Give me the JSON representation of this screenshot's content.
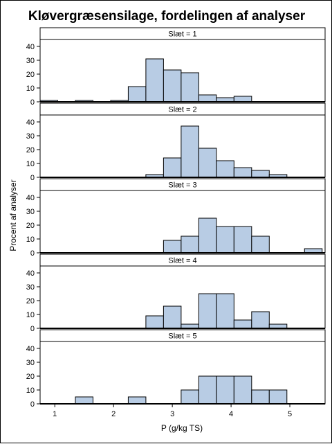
{
  "chart_data": {
    "type": "bar",
    "title": "Kløvergræsensilage, fordelingen af analyser",
    "xlabel": "P (g/kg TS)",
    "ylabel": "Procent af analyser",
    "xlim": [
      0.75,
      5.6
    ],
    "ylim": [
      0,
      45
    ],
    "xticks": [
      1,
      2,
      3,
      4,
      5
    ],
    "yticks": [
      0,
      10,
      20,
      30,
      40
    ],
    "bin_width": 0.3,
    "colors": {
      "bar_fill": "#b8cce4",
      "bar_stroke": "#000000",
      "strip_bg": "#ffffff"
    },
    "panels": [
      {
        "label": "Slæt = 1",
        "bins": [
          {
            "x0": 0.75,
            "value": 1
          },
          {
            "x0": 1.35,
            "value": 1
          },
          {
            "x0": 1.95,
            "value": 1
          },
          {
            "x0": 2.25,
            "value": 11
          },
          {
            "x0": 2.55,
            "value": 31
          },
          {
            "x0": 2.85,
            "value": 23
          },
          {
            "x0": 3.15,
            "value": 21
          },
          {
            "x0": 3.45,
            "value": 5
          },
          {
            "x0": 3.75,
            "value": 3
          },
          {
            "x0": 4.05,
            "value": 4
          }
        ]
      },
      {
        "label": "Slæt = 2",
        "bins": [
          {
            "x0": 2.55,
            "value": 2
          },
          {
            "x0": 2.85,
            "value": 14
          },
          {
            "x0": 3.15,
            "value": 37
          },
          {
            "x0": 3.45,
            "value": 21
          },
          {
            "x0": 3.75,
            "value": 12
          },
          {
            "x0": 4.05,
            "value": 7
          },
          {
            "x0": 4.35,
            "value": 5
          },
          {
            "x0": 4.65,
            "value": 2
          }
        ]
      },
      {
        "label": "Slæt = 3",
        "bins": [
          {
            "x0": 2.85,
            "value": 9
          },
          {
            "x0": 3.15,
            "value": 12
          },
          {
            "x0": 3.45,
            "value": 25
          },
          {
            "x0": 3.75,
            "value": 19
          },
          {
            "x0": 4.05,
            "value": 19
          },
          {
            "x0": 4.35,
            "value": 12
          },
          {
            "x0": 5.25,
            "value": 3
          }
        ]
      },
      {
        "label": "Slæt = 4",
        "bins": [
          {
            "x0": 2.55,
            "value": 9
          },
          {
            "x0": 2.85,
            "value": 16
          },
          {
            "x0": 3.15,
            "value": 3
          },
          {
            "x0": 3.45,
            "value": 25
          },
          {
            "x0": 3.75,
            "value": 25
          },
          {
            "x0": 4.05,
            "value": 6
          },
          {
            "x0": 4.35,
            "value": 12
          },
          {
            "x0": 4.65,
            "value": 3
          }
        ]
      },
      {
        "label": "Slæt = 5",
        "bins": [
          {
            "x0": 1.35,
            "value": 5
          },
          {
            "x0": 2.25,
            "value": 5
          },
          {
            "x0": 3.15,
            "value": 10
          },
          {
            "x0": 3.45,
            "value": 20
          },
          {
            "x0": 3.75,
            "value": 20
          },
          {
            "x0": 4.05,
            "value": 20
          },
          {
            "x0": 4.35,
            "value": 10
          },
          {
            "x0": 4.65,
            "value": 10
          }
        ]
      }
    ]
  }
}
